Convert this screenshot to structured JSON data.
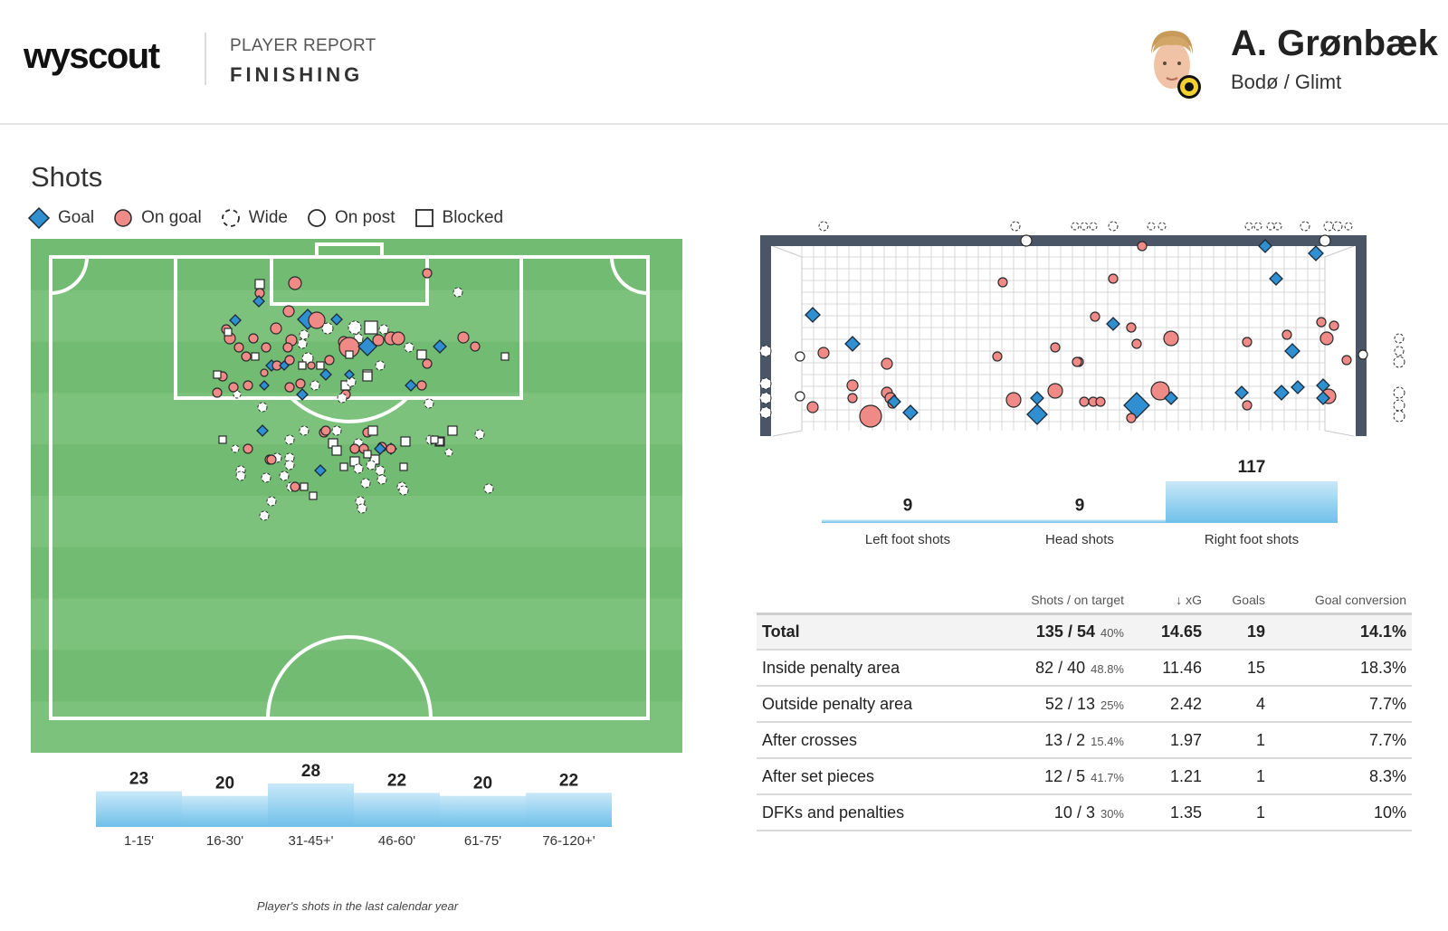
{
  "header": {
    "logo": "wyscout",
    "report_label": "PLAYER REPORT",
    "report_title": "FINISHING",
    "player_name": "A. Grønbæk",
    "team": "Bodø / Glimt"
  },
  "section": {
    "title": "Shots"
  },
  "legend": [
    {
      "label": "Goal",
      "icon": "diamond-icon",
      "color": "#2f8fd0"
    },
    {
      "label": "On goal",
      "icon": "circle-icon",
      "color": "#f08a86"
    },
    {
      "label": "Wide",
      "icon": "dashed-circle-icon",
      "color": "#ffffff"
    },
    {
      "label": "On post",
      "icon": "circle-outline-icon",
      "color": "#ffffff"
    },
    {
      "label": "Blocked",
      "icon": "square-icon",
      "color": "#ffffff"
    }
  ],
  "colors": {
    "pitch": "#77bf77",
    "pitch_stripe": "#6fb86f",
    "goal": "#2f8fd0",
    "on_goal": "#f08a86",
    "bar": "#79c4ec",
    "goal_frame": "#4a5565"
  },
  "chart_data": [
    {
      "type": "bar",
      "categories": [
        "1-15'",
        "16-30'",
        "31-45+'",
        "46-60'",
        "61-75'",
        "76-120+'"
      ],
      "values": [
        23,
        20,
        28,
        22,
        20,
        22
      ]
    },
    {
      "type": "bar",
      "categories": [
        "Left foot shots",
        "Head shots",
        "Right foot shots"
      ],
      "values": [
        9,
        9,
        117
      ]
    }
  ],
  "caption": "Player's shots in the last calendar year",
  "table": {
    "headers": [
      "",
      "Shots / on target",
      "↓ xG",
      "Goals",
      "Goal conversion"
    ],
    "rows": [
      {
        "label": "Total",
        "shots": "135 / 54",
        "pct": "40%",
        "xg": "14.65",
        "goals": "19",
        "conv": "14.1%"
      },
      {
        "label": "Inside penalty area",
        "shots": "82 / 40",
        "pct": "48.8%",
        "xg": "11.46",
        "goals": "15",
        "conv": "18.3%"
      },
      {
        "label": "Outside penalty area",
        "shots": "52 / 13",
        "pct": "25%",
        "xg": "2.42",
        "goals": "4",
        "conv": "7.7%"
      },
      {
        "label": "After crosses",
        "shots": "13 / 2",
        "pct": "15.4%",
        "xg": "1.97",
        "goals": "1",
        "conv": "7.7%"
      },
      {
        "label": "After set pieces",
        "shots": "12 / 5",
        "pct": "41.7%",
        "xg": "1.21",
        "goals": "1",
        "conv": "8.3%"
      },
      {
        "label": "DFKs and penalties",
        "shots": "10 / 3",
        "pct": "30%",
        "xg": "1.35",
        "goals": "1",
        "conv": "10%"
      }
    ]
  }
}
